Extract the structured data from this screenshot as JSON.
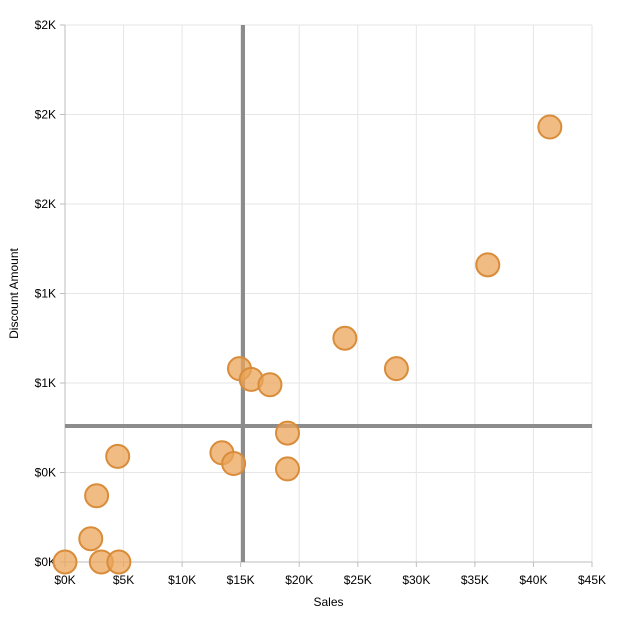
{
  "chart_data": {
    "type": "scatter",
    "xlabel": "Sales",
    "ylabel": "Discount Amount",
    "xlim": [
      0,
      45000
    ],
    "ylim": [
      0,
      3000
    ],
    "x_ticks": [
      0,
      5000,
      10000,
      15000,
      20000,
      25000,
      30000,
      35000,
      40000,
      45000
    ],
    "x_tick_labels": [
      "$0K",
      "$5K",
      "$10K",
      "$15K",
      "$20K",
      "$25K",
      "$30K",
      "$35K",
      "$40K",
      "$45K"
    ],
    "y_ticks": [
      0,
      500,
      1000,
      1500,
      2000,
      2500,
      3000
    ],
    "y_tick_labels": [
      "$0K",
      "$0K",
      "$1K",
      "$1K",
      "$2K",
      "$2K",
      "$2K"
    ],
    "grid": true,
    "reference_lines": {
      "x": 15200,
      "y": 760
    },
    "marker_color": "#eba55a",
    "marker_edge_color": "#d98c3a",
    "reference_line_color": "#8c8c8c",
    "points": [
      {
        "x": 41400,
        "y": 2430
      },
      {
        "x": 36100,
        "y": 1660
      },
      {
        "x": 23900,
        "y": 1250
      },
      {
        "x": 28300,
        "y": 1080
      },
      {
        "x": 14900,
        "y": 1080
      },
      {
        "x": 15900,
        "y": 1020
      },
      {
        "x": 17500,
        "y": 990
      },
      {
        "x": 19000,
        "y": 720
      },
      {
        "x": 13400,
        "y": 610
      },
      {
        "x": 14400,
        "y": 550
      },
      {
        "x": 19000,
        "y": 520
      },
      {
        "x": 4500,
        "y": 590
      },
      {
        "x": 2700,
        "y": 370
      },
      {
        "x": 2200,
        "y": 130
      },
      {
        "x": 0,
        "y": 0
      },
      {
        "x": 3100,
        "y": 0
      },
      {
        "x": 4600,
        "y": 0
      }
    ]
  }
}
